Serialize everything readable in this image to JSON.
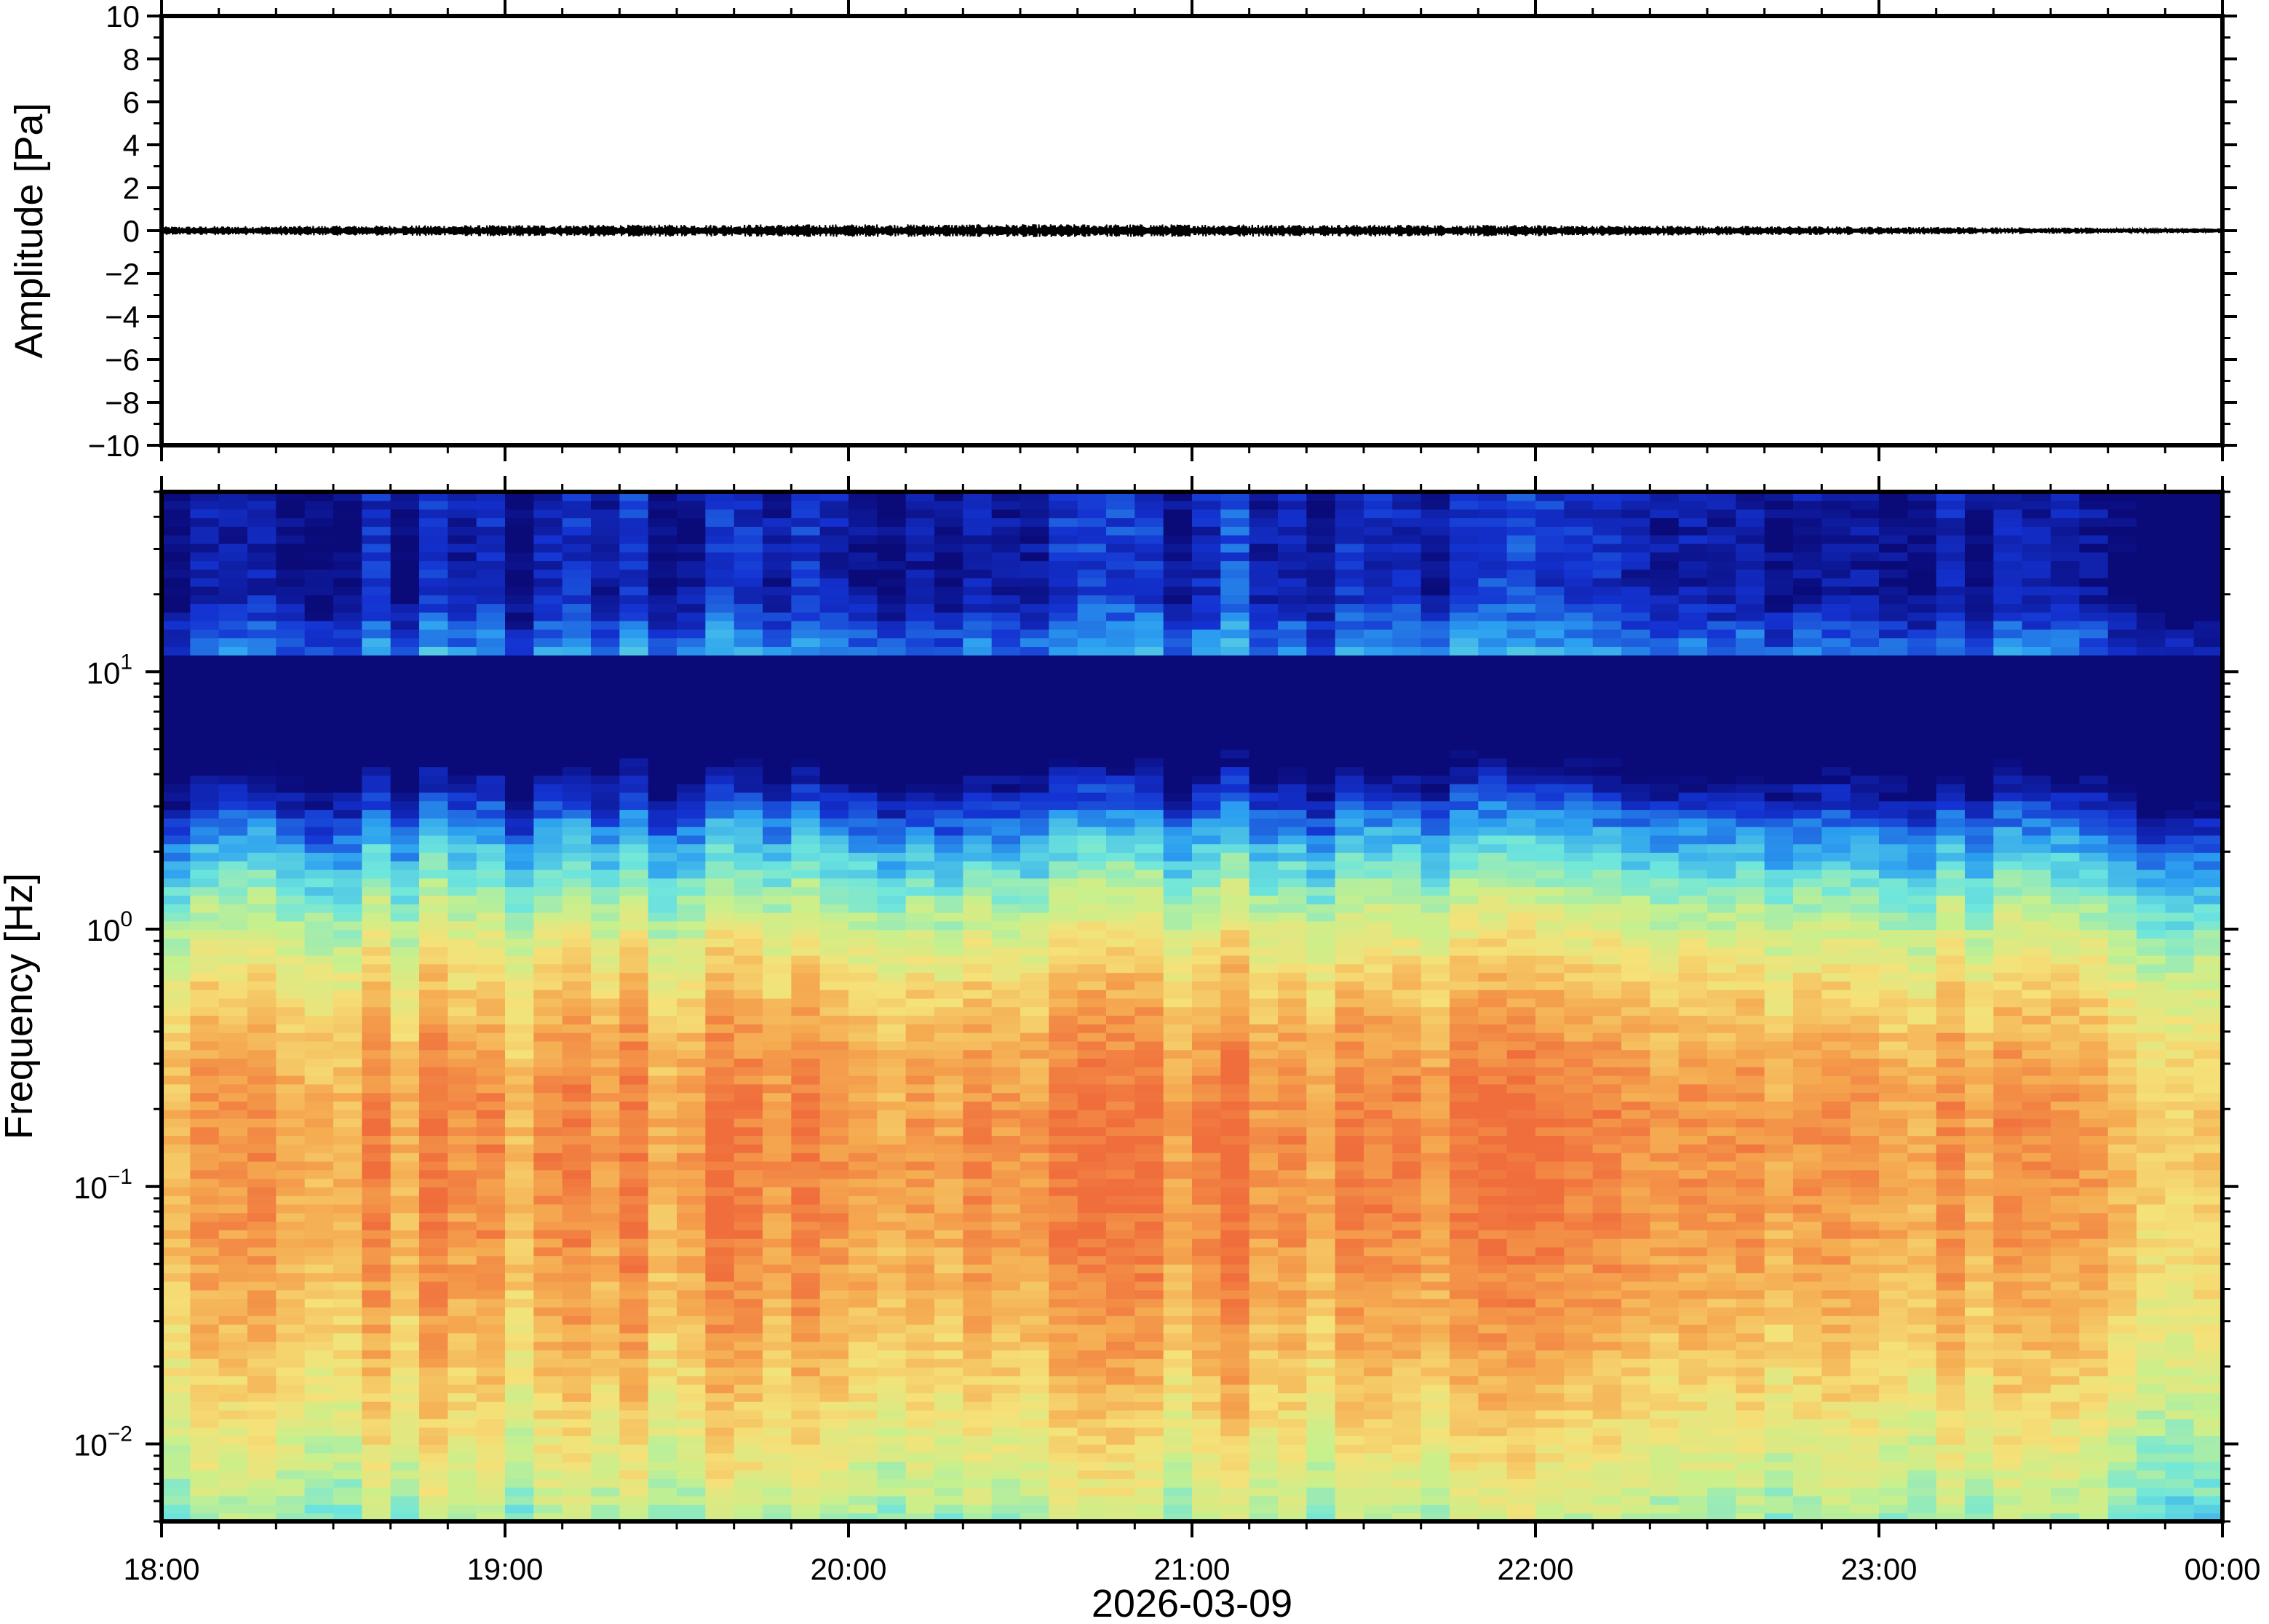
{
  "chart_data": [
    {
      "type": "line",
      "panel": "waveform",
      "ylabel": "Amplitude [Pa]",
      "ylim": [
        -10,
        10
      ],
      "y_ticks": [
        10,
        8,
        6,
        4,
        2,
        0,
        -2,
        -4,
        -6,
        -8,
        -10
      ],
      "y_tick_labels": [
        "10",
        "8",
        "6",
        "4",
        "2",
        "0",
        "−2",
        "−4",
        "−6",
        "−8",
        "−10"
      ],
      "xlim": [
        "18:00",
        "00:00"
      ],
      "series": [
        {
          "color": "#000000",
          "baseline": 0,
          "max_abs_amplitude": 0.3
        }
      ]
    },
    {
      "type": "heatmap",
      "panel": "spectrogram",
      "ylabel": "Frequency [Hz]",
      "y_scale": "log",
      "ylim": [
        0.005,
        50
      ],
      "y_ticks": [
        {
          "base": "10",
          "exp": "1",
          "value": 10
        },
        {
          "base": "10",
          "exp": "0",
          "value": 1
        },
        {
          "base": "10",
          "exp": "−1",
          "value": 0.1
        },
        {
          "base": "10",
          "exp": "−2",
          "value": 0.01
        }
      ],
      "x_ticks": [
        "18:00",
        "19:00",
        "20:00",
        "21:00",
        "22:00",
        "23:00",
        "00:00"
      ],
      "xlabel": "2026-03-09",
      "colormap": [
        "#0a0a78",
        "#1433d2",
        "#2ca0f0",
        "#6ee6dc",
        "#c8f08c",
        "#f5e178",
        "#f5aa50",
        "#f06e3c"
      ],
      "power_max_frequency_hz": 0.15
    }
  ]
}
